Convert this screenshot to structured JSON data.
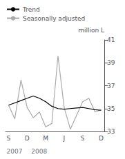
{
  "chart_data": {
    "type": "line",
    "categories": [
      "S",
      null,
      null,
      "D",
      null,
      null,
      "M",
      null,
      null,
      "J",
      null,
      null,
      "S",
      null,
      null,
      "D"
    ],
    "series": [
      {
        "name": "Trend",
        "color": "#000000",
        "values": [
          35.3,
          35.5,
          35.7,
          35.9,
          36.1,
          35.9,
          35.6,
          35.2,
          35.0,
          34.95,
          35.0,
          35.05,
          35.1,
          35.0,
          34.9,
          34.85
        ]
      },
      {
        "name": "Seasonally adjusted",
        "color": "#aaaaaa",
        "values": [
          35.3,
          34.1,
          37.5,
          35.1,
          34.2,
          34.7,
          33.4,
          33.7,
          39.6,
          35.1,
          33.2,
          34.4,
          35.6,
          35.9,
          34.7,
          34.9
        ]
      }
    ],
    "ylabel": "million L",
    "ylim": [
      33,
      41
    ],
    "yticks": [
      33,
      35,
      37,
      39,
      41
    ],
    "grid": false,
    "legend": "upper left",
    "annotations": [
      {
        "text": "2007",
        "x": 0
      },
      {
        "text": "2008",
        "x": 4
      }
    ]
  }
}
